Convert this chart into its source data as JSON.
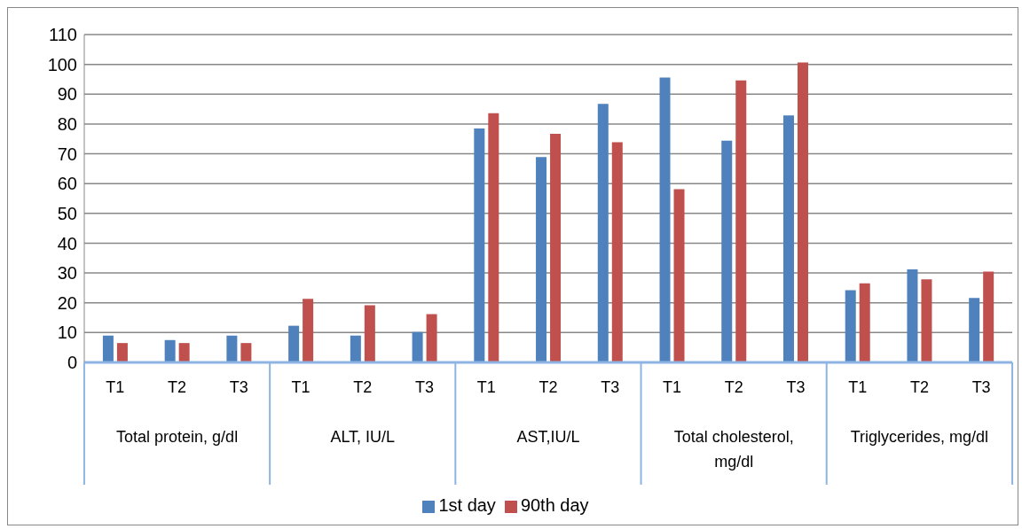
{
  "chart_data": {
    "type": "bar",
    "categories": [
      "T1",
      "T2",
      "T3",
      "T1",
      "T2",
      "T3",
      "T1",
      "T2",
      "T3",
      "T1",
      "T2",
      "T3",
      "T1",
      "T2",
      "T3"
    ],
    "annotations": [
      "Total protein, g/dl",
      "ALT, IU/L",
      "AST,IU/L",
      "Total cholesterol, mg/dl",
      "Triglycerides, mg/dl"
    ],
    "series": [
      {
        "name": "1st day",
        "color": "#4f81bd",
        "values": [
          9,
          7.5,
          9,
          12.3,
          9,
          10.2,
          78.5,
          68.9,
          86.7,
          95.6,
          74.4,
          82.9,
          24.2,
          31.2,
          21.6
        ]
      },
      {
        "name": "90th day",
        "color": "#c0504d",
        "values": [
          6.5,
          6.5,
          6.5,
          21.3,
          19.2,
          16.2,
          83.6,
          76.7,
          73.9,
          58.1,
          94.6,
          100.6,
          26.5,
          27.9,
          30.5
        ]
      }
    ],
    "ylim": [
      0,
      110
    ],
    "yticks": [
      0,
      10,
      20,
      30,
      40,
      50,
      60,
      70,
      80,
      90,
      100,
      110
    ],
    "grid": "y",
    "legend": "bottom"
  }
}
